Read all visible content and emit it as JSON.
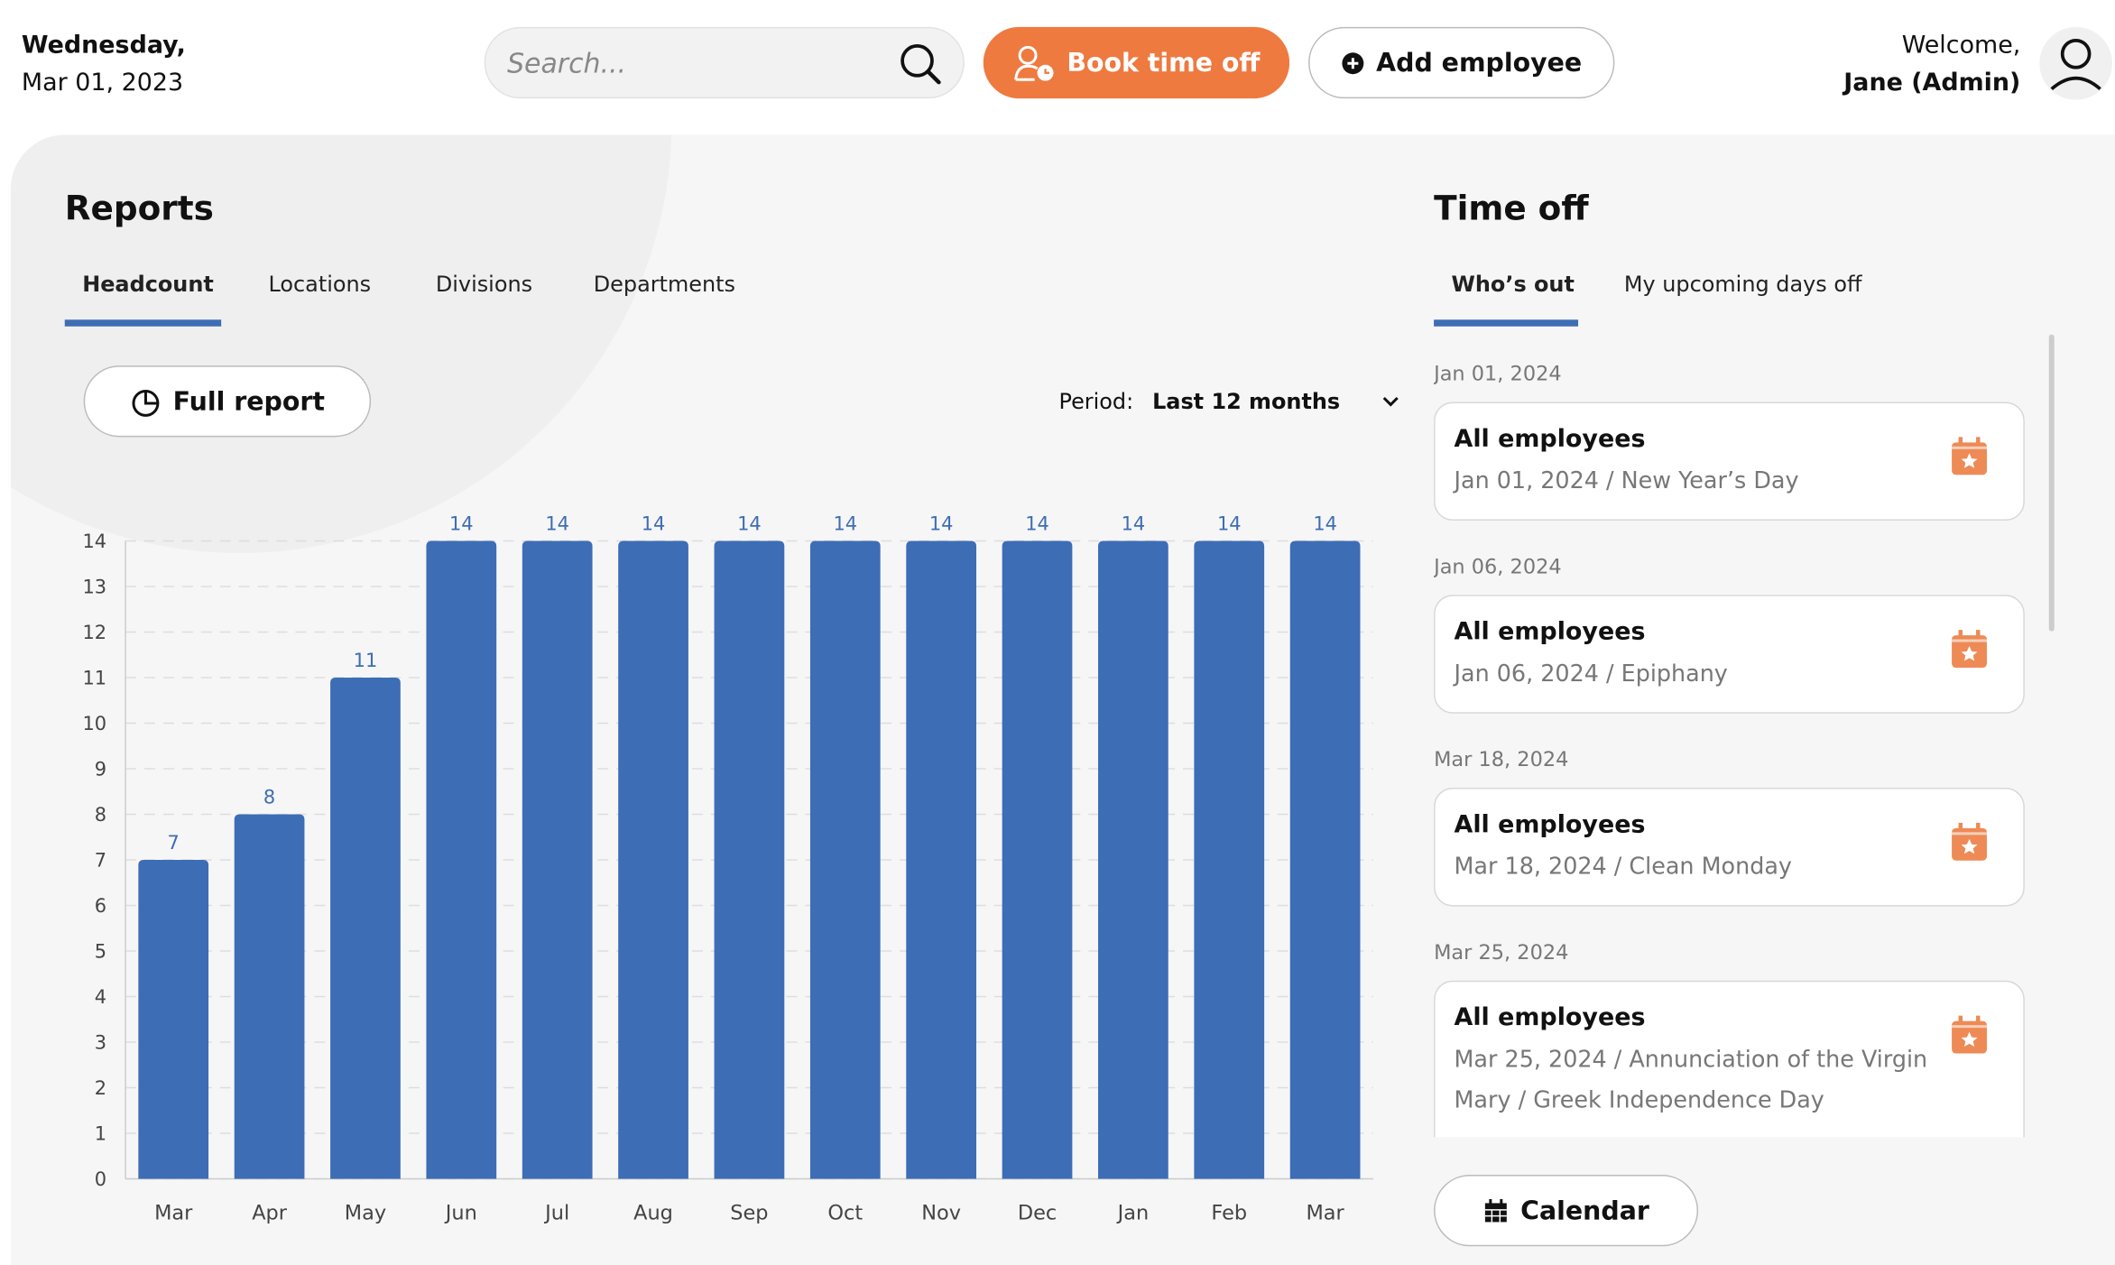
{
  "header": {
    "date_day": "Wednesday,",
    "date": "Mar 01, 2023",
    "search_placeholder": "Search...",
    "book_button": "Book time off",
    "add_button": "Add employee",
    "welcome": "Welcome,",
    "user": "Jane (Admin)"
  },
  "reports": {
    "title": "Reports",
    "tabs": [
      "Headcount",
      "Locations",
      "Divisions",
      "Departments"
    ],
    "full_report": "Full report",
    "period_label": "Period:",
    "period_value": "Last 12 months"
  },
  "chart_data": {
    "type": "bar",
    "categories": [
      "Mar",
      "Apr",
      "May",
      "Jun",
      "Jul",
      "Aug",
      "Sep",
      "Oct",
      "Nov",
      "Dec",
      "Jan",
      "Feb",
      "Mar"
    ],
    "values": [
      7,
      8,
      11,
      14,
      14,
      14,
      14,
      14,
      14,
      14,
      14,
      14,
      14
    ],
    "color": "#3d6db5",
    "ylim": [
      0,
      14
    ],
    "yticks": [
      0,
      1,
      2,
      3,
      4,
      5,
      6,
      7,
      8,
      9,
      10,
      11,
      12,
      13,
      14
    ],
    "grid": true
  },
  "time_off": {
    "title": "Time off",
    "tabs": [
      "Who’s out",
      "My upcoming days off"
    ],
    "items": [
      {
        "date": "Jan 01, 2024",
        "title": "All employees",
        "detail": "Jan 01, 2024 / New Year’s Day"
      },
      {
        "date": "Jan 06, 2024",
        "title": "All employees",
        "detail": "Jan 06, 2024 / Epiphany"
      },
      {
        "date": "Mar 18, 2024",
        "title": "All employees",
        "detail": "Mar 18, 2024 / Clean Monday"
      },
      {
        "date": "Mar 25, 2024",
        "title": "All employees",
        "detail": "Mar 25, 2024 / Annunciation of the Virgin Mary / Greek Independence Day"
      }
    ],
    "calendar": "Calendar"
  }
}
